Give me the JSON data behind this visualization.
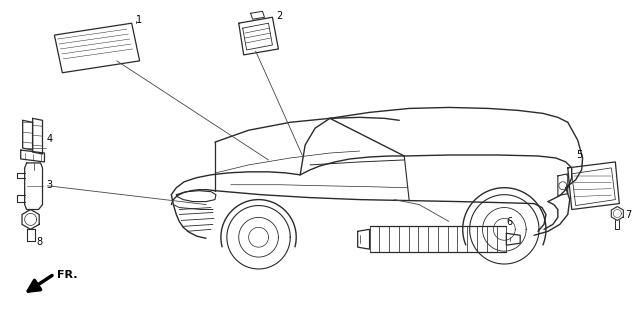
{
  "bg_color": "#ffffff",
  "line_color": "#2a2a2a",
  "label_color": "#000000",
  "fig_width": 6.4,
  "fig_height": 3.11,
  "dpi": 100
}
